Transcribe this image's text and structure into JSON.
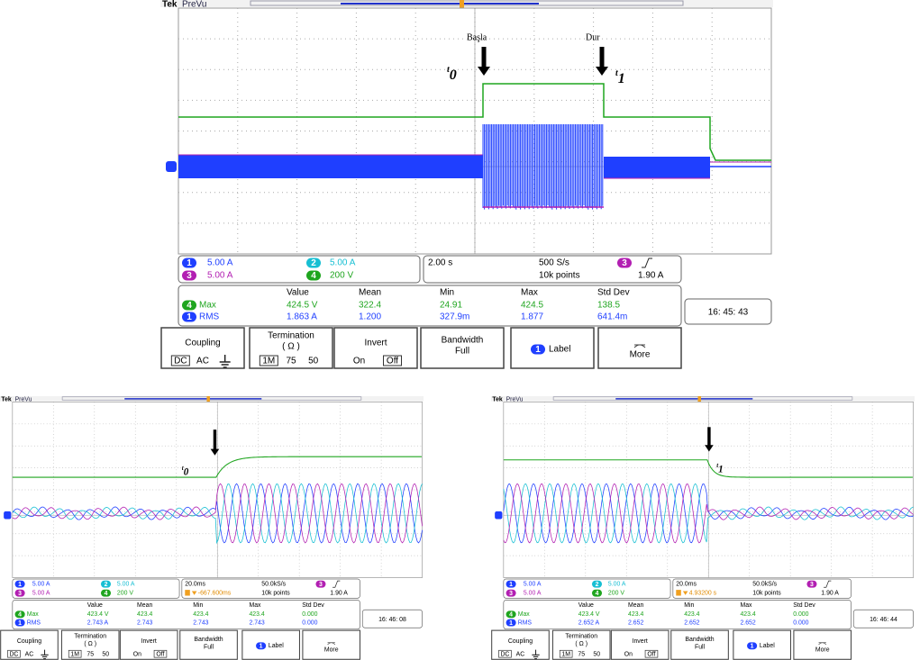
{
  "scopes": [
    {
      "brand": "Tek",
      "mode": "PreVu",
      "channels": [
        {
          "number": "1",
          "scale": "5.00 A",
          "color": "#1f3fff"
        },
        {
          "number": "2",
          "scale": "5.00 A",
          "color": "#17bfd3"
        },
        {
          "number": "3",
          "scale": "5.00 A",
          "color": "#b21fb2"
        },
        {
          "number": "4",
          "scale": "200 V",
          "color": "#1fa51f"
        }
      ],
      "timebase": {
        "scale": "2.00 s",
        "sample_rate": "500 S/s",
        "record_length": "10k points",
        "trigger_channel": "3",
        "trigger_level": "1.90 A"
      },
      "measurements": {
        "headers": [
          "Value",
          "Mean",
          "Min",
          "Max",
          "Std Dev"
        ],
        "rows": [
          {
            "channel": "4",
            "type": "Max",
            "values": [
              "424.5 V",
              "322.4",
              "24.91",
              "424.5",
              "138.5"
            ]
          },
          {
            "channel": "1",
            "type": "RMS",
            "values": [
              "1.863 A",
              "1.200",
              "327.9m",
              "1.877",
              "641.4m"
            ]
          }
        ]
      },
      "clock": "16: 45: 43",
      "menu": [
        {
          "title": [
            "Coupling"
          ],
          "options": [
            "DC",
            "AC"
          ]
        },
        {
          "title": [
            "Termination",
            "( Ω )"
          ],
          "options": [
            "1M",
            "75",
            "50"
          ]
        },
        {
          "title": [
            "Invert"
          ],
          "options": [
            "On",
            "Off"
          ]
        },
        {
          "title": [
            "Bandwidth",
            "Full"
          ]
        },
        {
          "badge": "1",
          "title": [
            "Label"
          ]
        },
        {
          "title": [
            "More"
          ]
        }
      ],
      "annotations": [
        {
          "text": "Başla"
        },
        {
          "text": "Dur"
        },
        {
          "base": "t",
          "sub": "0"
        },
        {
          "base": "t",
          "sub": "1"
        }
      ]
    },
    {
      "brand": "Tek",
      "mode": "PreVu",
      "channels": [
        {
          "number": "1",
          "scale": "5.00 A",
          "color": "#1f3fff"
        },
        {
          "number": "2",
          "scale": "5.00 A",
          "color": "#17bfd3"
        },
        {
          "number": "3",
          "scale": "5.00 A",
          "color": "#b21fb2"
        },
        {
          "number": "4",
          "scale": "200 V",
          "color": "#1fa51f"
        }
      ],
      "timebase": {
        "scale": "20.0ms",
        "sample_rate": "50.0kS/s",
        "record_length": "10k points",
        "trigger_channel": "3",
        "trigger_level": "1.90 A",
        "trigger_offset": "-667.600ms"
      },
      "measurements": {
        "headers": [
          "Value",
          "Mean",
          "Min",
          "Max",
          "Std Dev"
        ],
        "rows": [
          {
            "channel": "4",
            "type": "Max",
            "values": [
              "423.4 V",
              "423.4",
              "423.4",
              "423.4",
              "0.000"
            ]
          },
          {
            "channel": "1",
            "type": "RMS",
            "values": [
              "2.743 A",
              "2.743",
              "2.743",
              "2.743",
              "0.000"
            ]
          }
        ]
      },
      "clock": "16: 46: 08",
      "menu": [
        {
          "title": [
            "Coupling"
          ],
          "options": [
            "DC",
            "AC"
          ]
        },
        {
          "title": [
            "Termination",
            "( Ω )"
          ],
          "options": [
            "1M",
            "75",
            "50"
          ]
        },
        {
          "title": [
            "Invert"
          ],
          "options": [
            "On",
            "Off"
          ]
        },
        {
          "title": [
            "Bandwidth",
            "Full"
          ]
        },
        {
          "badge": "1",
          "title": [
            "Label"
          ]
        },
        {
          "title": [
            "More"
          ]
        }
      ],
      "annotations": [
        {
          "base": "t",
          "sub": "0"
        }
      ]
    },
    {
      "brand": "Tek",
      "mode": "PreVu",
      "channels": [
        {
          "number": "1",
          "scale": "5.00 A",
          "color": "#1f3fff"
        },
        {
          "number": "2",
          "scale": "5.00 A",
          "color": "#17bfd3"
        },
        {
          "number": "3",
          "scale": "5.00 A",
          "color": "#b21fb2"
        },
        {
          "number": "4",
          "scale": "200 V",
          "color": "#1fa51f"
        }
      ],
      "timebase": {
        "scale": "20.0ms",
        "sample_rate": "50.0kS/s",
        "record_length": "10k points",
        "trigger_channel": "3",
        "trigger_level": "1.90 A",
        "trigger_offset": "4.93200 s"
      },
      "measurements": {
        "headers": [
          "Value",
          "Mean",
          "Min",
          "Max",
          "Std Dev"
        ],
        "rows": [
          {
            "channel": "4",
            "type": "Max",
            "values": [
              "423.4 V",
              "423.4",
              "423.4",
              "423.4",
              "0.000"
            ]
          },
          {
            "channel": "1",
            "type": "RMS",
            "values": [
              "2.652 A",
              "2.652",
              "2.652",
              "2.652",
              "0.000"
            ]
          }
        ]
      },
      "clock": "16: 46: 44",
      "menu": [
        {
          "title": [
            "Coupling"
          ],
          "options": [
            "DC",
            "AC"
          ]
        },
        {
          "title": [
            "Termination",
            "( Ω )"
          ],
          "options": [
            "1M",
            "75",
            "50"
          ]
        },
        {
          "title": [
            "Invert"
          ],
          "options": [
            "On",
            "Off"
          ]
        },
        {
          "title": [
            "Bandwidth",
            "Full"
          ]
        },
        {
          "badge": "1",
          "title": [
            "Label"
          ]
        },
        {
          "title": [
            "More"
          ]
        }
      ],
      "annotations": [
        {
          "base": "t",
          "sub": "1"
        }
      ]
    }
  ]
}
